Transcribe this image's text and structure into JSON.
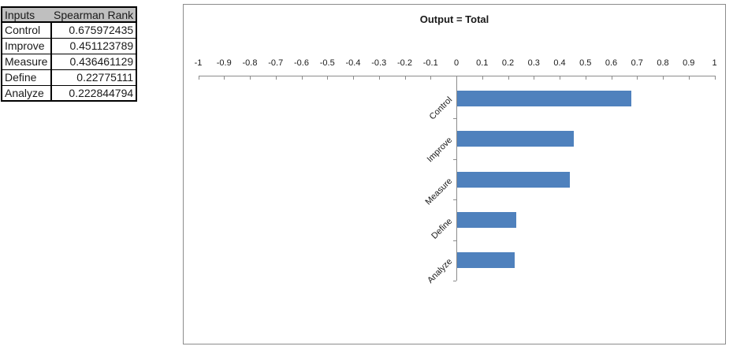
{
  "table": {
    "headers": [
      "Inputs",
      "Spearman Rank"
    ],
    "rows": [
      {
        "input": "Control",
        "rank": "0.675972435"
      },
      {
        "input": "Improve",
        "rank": "0.451123789"
      },
      {
        "input": "Measure",
        "rank": "0.436461129"
      },
      {
        "input": "Define",
        "rank": "0.22775111"
      },
      {
        "input": "Analyze",
        "rank": "0.222844794"
      }
    ]
  },
  "chart_data": {
    "type": "bar",
    "orientation": "horizontal",
    "title": "Output = Total",
    "categories": [
      "Control",
      "Improve",
      "Measure",
      "Define",
      "Analyze"
    ],
    "values": [
      0.675972435,
      0.451123789,
      0.436461129,
      0.22775111,
      0.222844794
    ],
    "xlim": [
      -1,
      1
    ],
    "x_tick_labels": [
      "-1",
      "-0.9",
      "-0.8",
      "-0.7",
      "-0.6",
      "-0.5",
      "-0.4",
      "-0.3",
      "-0.2",
      "-0.1",
      "0",
      "0.1",
      "0.2",
      "0.3",
      "0.4",
      "0.5",
      "0.6",
      "0.7",
      "0.8",
      "0.9",
      "1"
    ],
    "bar_color": "#4F81BD",
    "axis_color": "#8C8C8C",
    "grid": false,
    "legend": "none"
  }
}
